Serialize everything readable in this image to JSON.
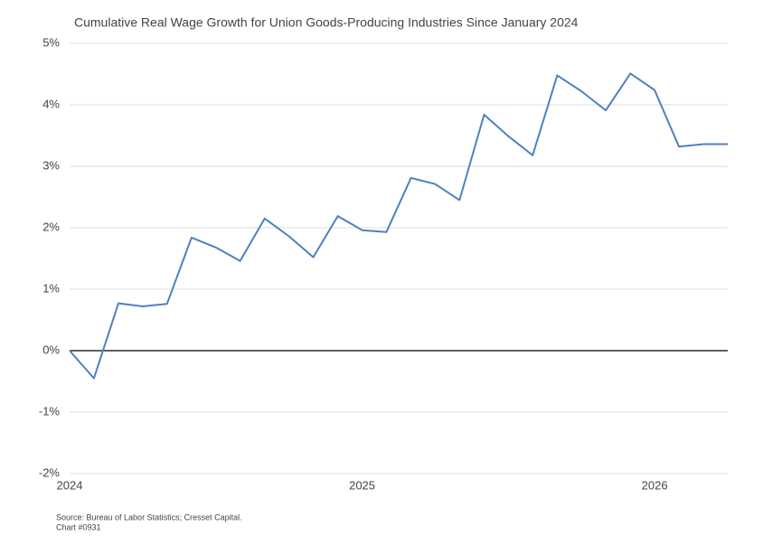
{
  "chart_data": {
    "type": "line",
    "title": "Cumulative Real Wage Growth for Union Goods-Producing Industries  Since January 2024",
    "x": [
      2024,
      2024.083,
      2024.167,
      2024.25,
      2024.333,
      2024.417,
      2024.5,
      2024.583,
      2024.667,
      2024.75,
      2024.833,
      2024.917,
      2025,
      2025.083,
      2025.167,
      2025.25,
      2025.333,
      2025.417,
      2025.5,
      2025.583,
      2025.667,
      2025.75,
      2025.833,
      2025.917,
      2026,
      2026.083,
      2026.167,
      2026.25
    ],
    "series": [
      {
        "color": "#4f81bd",
        "values": [
          0,
          -0.45,
          0.77,
          0.72,
          0.76,
          1.84,
          1.68,
          1.46,
          2.15,
          1.86,
          1.52,
          2.19,
          1.96,
          1.93,
          2.81,
          2.71,
          2.45,
          3.84,
          3.49,
          3.18,
          4.48,
          4.22,
          3.91,
          4.51,
          4.24,
          3.32,
          3.36,
          3.36
        ]
      }
    ],
    "xlim": [
      2024,
      2026.25
    ],
    "xticks": [
      2024,
      2025,
      2026
    ],
    "ylim": [
      -2,
      5
    ],
    "yticks": [
      {
        "value": -2,
        "label": "-2%"
      },
      {
        "value": -1,
        "label": "-1%"
      },
      {
        "value": 0,
        "label": "0%"
      },
      {
        "value": 1,
        "label": "1%"
      },
      {
        "value": 2,
        "label": "2%"
      },
      {
        "value": 3,
        "label": "3%"
      },
      {
        "value": 4,
        "label": "4%"
      },
      {
        "value": 5,
        "label": "5%"
      }
    ],
    "grid": true,
    "source": "Source: Bureau of Labor Statistics; Cresset Capital.",
    "chart_number": "Chart #0931"
  }
}
